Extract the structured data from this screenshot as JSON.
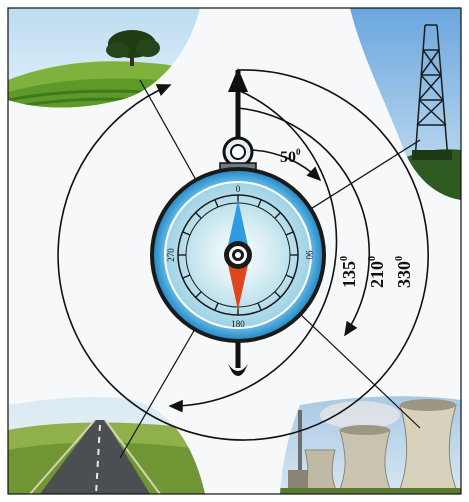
{
  "compass": {
    "dial_labels": {
      "north": "0",
      "east": "90",
      "south": "180",
      "west": "270"
    }
  },
  "angles": {
    "a50": {
      "value": "50",
      "suffix": "0"
    },
    "a135": {
      "value": "135",
      "suffix": "0"
    },
    "a210": {
      "value": "210",
      "suffix": "0"
    },
    "a330": {
      "value": "330",
      "suffix": "0"
    }
  },
  "colors": {
    "frame": "#111111",
    "arc_stroke": "#111111",
    "dial_ring": "#3ba3de",
    "north_needle": "#2f9be0",
    "south_needle": "#e0451f",
    "dial_face": "#cfe9f1"
  },
  "scenes": {
    "top_left": "tree-on-hill",
    "top_right": "oil-derrick",
    "bottom_left": "road",
    "bottom_right": "cooling-towers"
  }
}
